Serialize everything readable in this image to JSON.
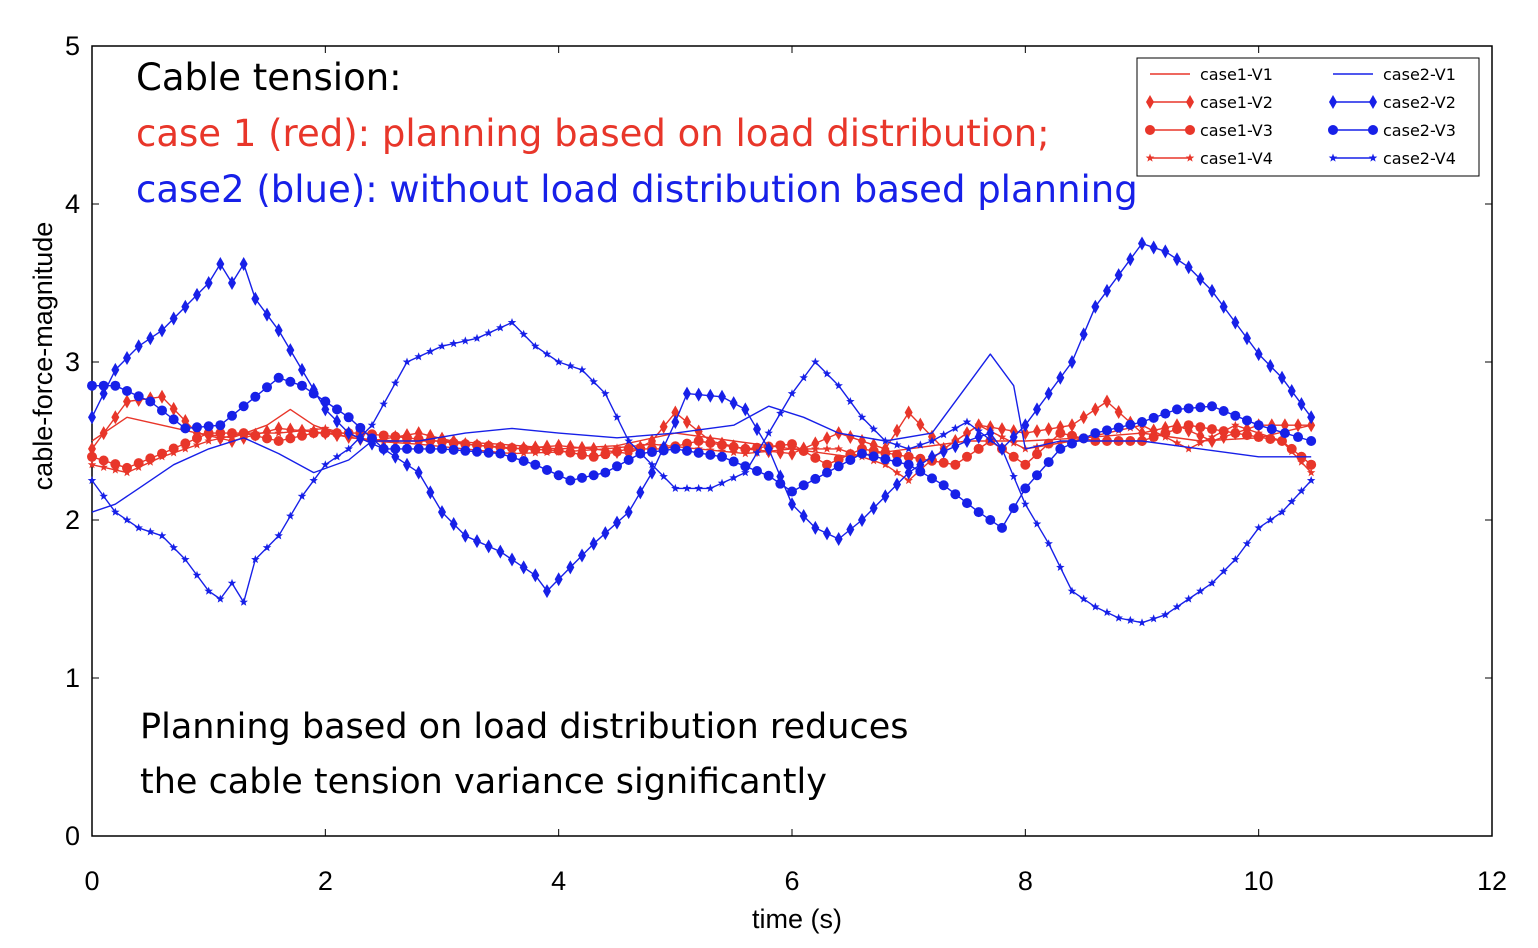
{
  "chart_data": {
    "type": "line",
    "xlabel": "time (s)",
    "ylabel": "cable-force-magnitude",
    "xlim": [
      0,
      12
    ],
    "ylim": [
      0,
      5
    ],
    "x_ticks": [
      "0",
      "2",
      "4",
      "6",
      "8",
      "10",
      "12"
    ],
    "y_ticks": [
      "0",
      "1",
      "2",
      "3",
      "4",
      "5"
    ],
    "grid": false,
    "legend_position": "top-right",
    "annotations": {
      "line1": "Cable tension:",
      "line2": "case 1 (red): planning based on load distribution;",
      "line3": "case2 (blue): without load distribution based planning",
      "note1": "Planning based on load distribution reduces",
      "note2": "the cable tension variance significantly"
    },
    "colors": {
      "case1": "#e8362a",
      "case2": "#1720e8",
      "annot_black": "#000000"
    },
    "series": [
      {
        "name": "case1-V1",
        "color": "#e8362a",
        "marker": "none",
        "points": [
          [
            0.0,
            2.5
          ],
          [
            0.3,
            2.65
          ],
          [
            0.6,
            2.6
          ],
          [
            0.9,
            2.55
          ],
          [
            1.2,
            2.52
          ],
          [
            1.5,
            2.6
          ],
          [
            1.7,
            2.7
          ],
          [
            1.9,
            2.6
          ],
          [
            2.2,
            2.52
          ],
          [
            2.6,
            2.5
          ],
          [
            3.0,
            2.5
          ],
          [
            3.5,
            2.48
          ],
          [
            4.0,
            2.45
          ],
          [
            4.5,
            2.47
          ],
          [
            5.0,
            2.55
          ],
          [
            5.5,
            2.5
          ],
          [
            6.0,
            2.45
          ],
          [
            6.5,
            2.4
          ],
          [
            7.0,
            2.45
          ],
          [
            7.5,
            2.5
          ],
          [
            8.0,
            2.5
          ],
          [
            8.5,
            2.52
          ],
          [
            9.0,
            2.55
          ],
          [
            9.5,
            2.5
          ],
          [
            10.0,
            2.52
          ],
          [
            10.45,
            2.6
          ]
        ]
      },
      {
        "name": "case1-V2",
        "color": "#e8362a",
        "marker": "diamond",
        "points": [
          [
            0.0,
            2.45
          ],
          [
            0.3,
            2.75
          ],
          [
            0.6,
            2.78
          ],
          [
            0.9,
            2.55
          ],
          [
            1.2,
            2.5
          ],
          [
            1.6,
            2.58
          ],
          [
            2.0,
            2.55
          ],
          [
            2.4,
            2.5
          ],
          [
            2.8,
            2.55
          ],
          [
            3.2,
            2.48
          ],
          [
            3.6,
            2.45
          ],
          [
            4.0,
            2.47
          ],
          [
            4.3,
            2.45
          ],
          [
            4.6,
            2.42
          ],
          [
            4.8,
            2.5
          ],
          [
            5.0,
            2.68
          ],
          [
            5.3,
            2.5
          ],
          [
            5.6,
            2.45
          ],
          [
            6.0,
            2.42
          ],
          [
            6.4,
            2.55
          ],
          [
            6.8,
            2.45
          ],
          [
            7.0,
            2.68
          ],
          [
            7.3,
            2.45
          ],
          [
            7.6,
            2.6
          ],
          [
            8.0,
            2.55
          ],
          [
            8.4,
            2.6
          ],
          [
            8.7,
            2.75
          ],
          [
            9.0,
            2.55
          ],
          [
            9.3,
            2.6
          ],
          [
            9.6,
            2.5
          ],
          [
            10.0,
            2.6
          ],
          [
            10.45,
            2.6
          ]
        ]
      },
      {
        "name": "case1-V3",
        "color": "#e8362a",
        "marker": "circle",
        "points": [
          [
            0.0,
            2.4
          ],
          [
            0.3,
            2.33
          ],
          [
            0.6,
            2.42
          ],
          [
            1.0,
            2.55
          ],
          [
            1.3,
            2.55
          ],
          [
            1.6,
            2.5
          ],
          [
            1.9,
            2.55
          ],
          [
            2.3,
            2.55
          ],
          [
            2.7,
            2.52
          ],
          [
            3.2,
            2.48
          ],
          [
            3.7,
            2.45
          ],
          [
            4.0,
            2.44
          ],
          [
            4.3,
            2.4
          ],
          [
            4.6,
            2.45
          ],
          [
            4.9,
            2.45
          ],
          [
            5.2,
            2.5
          ],
          [
            5.6,
            2.45
          ],
          [
            6.0,
            2.48
          ],
          [
            6.3,
            2.35
          ],
          [
            6.6,
            2.45
          ],
          [
            7.0,
            2.4
          ],
          [
            7.4,
            2.35
          ],
          [
            7.7,
            2.5
          ],
          [
            8.0,
            2.35
          ],
          [
            8.3,
            2.55
          ],
          [
            8.6,
            2.5
          ],
          [
            9.0,
            2.5
          ],
          [
            9.4,
            2.6
          ],
          [
            9.8,
            2.55
          ],
          [
            10.2,
            2.5
          ],
          [
            10.45,
            2.35
          ]
        ]
      },
      {
        "name": "case1-V4",
        "color": "#e8362a",
        "marker": "star",
        "points": [
          [
            0.0,
            2.35
          ],
          [
            0.3,
            2.3
          ],
          [
            0.6,
            2.4
          ],
          [
            1.0,
            2.5
          ],
          [
            1.3,
            2.55
          ],
          [
            1.6,
            2.55
          ],
          [
            2.0,
            2.58
          ],
          [
            2.4,
            2.5
          ],
          [
            2.8,
            2.48
          ],
          [
            3.2,
            2.45
          ],
          [
            3.6,
            2.42
          ],
          [
            4.0,
            2.43
          ],
          [
            4.4,
            2.45
          ],
          [
            4.8,
            2.48
          ],
          [
            5.2,
            2.45
          ],
          [
            5.6,
            2.42
          ],
          [
            6.0,
            2.45
          ],
          [
            6.4,
            2.45
          ],
          [
            6.8,
            2.35
          ],
          [
            7.0,
            2.25
          ],
          [
            7.3,
            2.45
          ],
          [
            7.6,
            2.6
          ],
          [
            8.0,
            2.45
          ],
          [
            8.4,
            2.5
          ],
          [
            8.7,
            2.55
          ],
          [
            9.0,
            2.6
          ],
          [
            9.4,
            2.45
          ],
          [
            9.8,
            2.6
          ],
          [
            10.2,
            2.5
          ],
          [
            10.45,
            2.3
          ]
        ]
      },
      {
        "name": "case2-V1",
        "color": "#1720e8",
        "marker": "none",
        "points": [
          [
            0.0,
            2.05
          ],
          [
            0.2,
            2.1
          ],
          [
            0.4,
            2.2
          ],
          [
            0.7,
            2.35
          ],
          [
            1.0,
            2.45
          ],
          [
            1.3,
            2.52
          ],
          [
            1.6,
            2.42
          ],
          [
            1.9,
            2.3
          ],
          [
            2.2,
            2.38
          ],
          [
            2.4,
            2.5
          ],
          [
            2.8,
            2.5
          ],
          [
            3.2,
            2.55
          ],
          [
            3.6,
            2.58
          ],
          [
            4.0,
            2.55
          ],
          [
            4.5,
            2.52
          ],
          [
            5.0,
            2.55
          ],
          [
            5.5,
            2.6
          ],
          [
            5.8,
            2.72
          ],
          [
            6.1,
            2.65
          ],
          [
            6.4,
            2.55
          ],
          [
            6.8,
            2.5
          ],
          [
            7.2,
            2.55
          ],
          [
            7.5,
            2.85
          ],
          [
            7.7,
            3.05
          ],
          [
            7.9,
            2.85
          ],
          [
            8.0,
            2.45
          ],
          [
            8.3,
            2.5
          ],
          [
            8.6,
            2.5
          ],
          [
            9.0,
            2.5
          ],
          [
            9.5,
            2.45
          ],
          [
            10.0,
            2.4
          ],
          [
            10.45,
            2.4
          ]
        ]
      },
      {
        "name": "case2-V2",
        "color": "#1720e8",
        "marker": "diamond",
        "points": [
          [
            0.0,
            2.65
          ],
          [
            0.2,
            2.95
          ],
          [
            0.4,
            3.1
          ],
          [
            0.6,
            3.2
          ],
          [
            0.8,
            3.35
          ],
          [
            1.0,
            3.5
          ],
          [
            1.1,
            3.62
          ],
          [
            1.2,
            3.5
          ],
          [
            1.3,
            3.62
          ],
          [
            1.4,
            3.4
          ],
          [
            1.6,
            3.2
          ],
          [
            1.8,
            2.95
          ],
          [
            2.0,
            2.7
          ],
          [
            2.2,
            2.55
          ],
          [
            2.5,
            2.45
          ],
          [
            2.8,
            2.3
          ],
          [
            3.0,
            2.05
          ],
          [
            3.2,
            1.9
          ],
          [
            3.5,
            1.8
          ],
          [
            3.8,
            1.65
          ],
          [
            3.9,
            1.55
          ],
          [
            4.1,
            1.7
          ],
          [
            4.3,
            1.85
          ],
          [
            4.6,
            2.05
          ],
          [
            4.8,
            2.3
          ],
          [
            5.0,
            2.62
          ],
          [
            5.1,
            2.8
          ],
          [
            5.4,
            2.78
          ],
          [
            5.6,
            2.7
          ],
          [
            5.8,
            2.45
          ],
          [
            6.0,
            2.1
          ],
          [
            6.2,
            1.95
          ],
          [
            6.4,
            1.88
          ],
          [
            6.6,
            2.0
          ],
          [
            6.8,
            2.15
          ],
          [
            7.0,
            2.3
          ],
          [
            7.2,
            2.4
          ],
          [
            7.5,
            2.5
          ],
          [
            7.7,
            2.55
          ],
          [
            7.8,
            2.45
          ],
          [
            8.0,
            2.6
          ],
          [
            8.2,
            2.8
          ],
          [
            8.4,
            3.0
          ],
          [
            8.6,
            3.35
          ],
          [
            8.8,
            3.55
          ],
          [
            9.0,
            3.75
          ],
          [
            9.2,
            3.7
          ],
          [
            9.4,
            3.6
          ],
          [
            9.6,
            3.45
          ],
          [
            9.8,
            3.25
          ],
          [
            10.0,
            3.05
          ],
          [
            10.2,
            2.9
          ],
          [
            10.45,
            2.65
          ]
        ]
      },
      {
        "name": "case2-V3",
        "color": "#1720e8",
        "marker": "circle",
        "points": [
          [
            0.0,
            2.85
          ],
          [
            0.2,
            2.85
          ],
          [
            0.5,
            2.75
          ],
          [
            0.8,
            2.58
          ],
          [
            1.1,
            2.6
          ],
          [
            1.4,
            2.78
          ],
          [
            1.6,
            2.9
          ],
          [
            1.8,
            2.85
          ],
          [
            2.0,
            2.75
          ],
          [
            2.2,
            2.65
          ],
          [
            2.5,
            2.45
          ],
          [
            3.0,
            2.45
          ],
          [
            3.5,
            2.42
          ],
          [
            3.8,
            2.35
          ],
          [
            4.1,
            2.25
          ],
          [
            4.4,
            2.3
          ],
          [
            4.7,
            2.42
          ],
          [
            5.0,
            2.45
          ],
          [
            5.4,
            2.4
          ],
          [
            5.8,
            2.28
          ],
          [
            6.0,
            2.18
          ],
          [
            6.3,
            2.3
          ],
          [
            6.6,
            2.42
          ],
          [
            7.0,
            2.35
          ],
          [
            7.3,
            2.22
          ],
          [
            7.6,
            2.05
          ],
          [
            7.8,
            1.95
          ],
          [
            8.0,
            2.2
          ],
          [
            8.3,
            2.45
          ],
          [
            8.6,
            2.55
          ],
          [
            9.0,
            2.62
          ],
          [
            9.3,
            2.7
          ],
          [
            9.6,
            2.72
          ],
          [
            10.0,
            2.6
          ],
          [
            10.45,
            2.5
          ]
        ]
      },
      {
        "name": "case2-V4",
        "color": "#1720e8",
        "marker": "star",
        "points": [
          [
            0.0,
            2.25
          ],
          [
            0.2,
            2.05
          ],
          [
            0.4,
            1.95
          ],
          [
            0.6,
            1.9
          ],
          [
            0.8,
            1.75
          ],
          [
            1.0,
            1.55
          ],
          [
            1.1,
            1.5
          ],
          [
            1.2,
            1.6
          ],
          [
            1.3,
            1.48
          ],
          [
            1.4,
            1.75
          ],
          [
            1.6,
            1.9
          ],
          [
            1.8,
            2.15
          ],
          [
            2.0,
            2.35
          ],
          [
            2.2,
            2.45
          ],
          [
            2.4,
            2.6
          ],
          [
            2.7,
            3.0
          ],
          [
            3.0,
            3.1
          ],
          [
            3.3,
            3.15
          ],
          [
            3.6,
            3.25
          ],
          [
            3.8,
            3.1
          ],
          [
            4.0,
            3.0
          ],
          [
            4.2,
            2.95
          ],
          [
            4.4,
            2.8
          ],
          [
            4.6,
            2.5
          ],
          [
            4.8,
            2.35
          ],
          [
            5.0,
            2.2
          ],
          [
            5.3,
            2.2
          ],
          [
            5.6,
            2.3
          ],
          [
            5.8,
            2.55
          ],
          [
            6.0,
            2.8
          ],
          [
            6.2,
            3.0
          ],
          [
            6.4,
            2.85
          ],
          [
            6.6,
            2.65
          ],
          [
            6.8,
            2.5
          ],
          [
            7.0,
            2.45
          ],
          [
            7.2,
            2.5
          ],
          [
            7.5,
            2.62
          ],
          [
            7.8,
            2.45
          ],
          [
            8.0,
            2.1
          ],
          [
            8.2,
            1.85
          ],
          [
            8.4,
            1.55
          ],
          [
            8.6,
            1.45
          ],
          [
            8.8,
            1.38
          ],
          [
            9.0,
            1.35
          ],
          [
            9.2,
            1.4
          ],
          [
            9.4,
            1.5
          ],
          [
            9.6,
            1.6
          ],
          [
            9.8,
            1.75
          ],
          [
            10.0,
            1.95
          ],
          [
            10.2,
            2.05
          ],
          [
            10.45,
            2.25
          ]
        ]
      }
    ]
  }
}
